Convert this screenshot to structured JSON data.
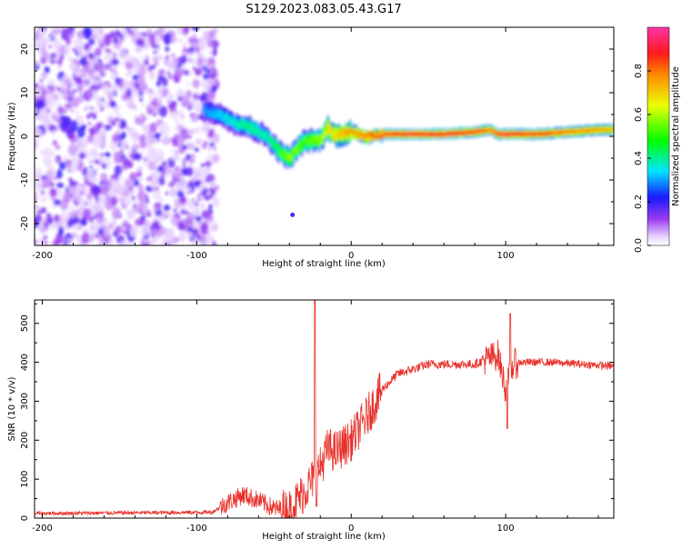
{
  "title": "S129.2023.083.05.43.G17",
  "chart_data": [
    {
      "type": "heatmap",
      "xlabel": "Height of straight line (km)",
      "ylabel": "Frequency (Hz)",
      "xlim": [
        -205,
        170
      ],
      "ylim": [
        -25,
        25
      ],
      "x_ticks": [
        -200,
        -100,
        0,
        100
      ],
      "y_ticks": [
        -20,
        -10,
        0,
        10,
        20
      ],
      "colorbar": {
        "label": "Normalized spectral amplitude",
        "ticks": [
          0.0,
          0.2,
          0.4,
          0.6,
          0.8
        ],
        "range": [
          0,
          1
        ]
      },
      "noise_region_x": [
        -205,
        -90
      ],
      "signal_track": {
        "x": [
          -95,
          -85,
          -75,
          -65,
          -55,
          -45,
          -40,
          -30,
          -20,
          -15,
          -10,
          0,
          10,
          20,
          40,
          60,
          80,
          90,
          95,
          100,
          120,
          140,
          160,
          170
        ],
        "y": [
          6,
          5,
          3,
          2,
          0,
          -4,
          -5,
          -1,
          -1,
          2,
          0,
          1,
          0,
          0.5,
          0.5,
          0.5,
          1,
          1.5,
          0.5,
          0.5,
          0.5,
          1,
          1.5,
          1.5
        ],
        "amplitude": [
          0.3,
          0.35,
          0.4,
          0.45,
          0.4,
          0.55,
          0.6,
          0.55,
          0.6,
          0.7,
          0.75,
          0.8,
          0.85,
          0.9,
          0.95,
          0.95,
          0.9,
          0.85,
          0.9,
          0.95,
          0.9,
          0.85,
          0.8,
          0.8
        ]
      },
      "isolated_point": {
        "x": -38,
        "y": -18
      }
    },
    {
      "type": "line",
      "xlabel": "Height of straight line (km)",
      "ylabel": "SNR (10 * v/v)",
      "xlim": [
        -205,
        170
      ],
      "ylim": [
        0,
        560
      ],
      "x_ticks": [
        -200,
        -100,
        0,
        100
      ],
      "y_ticks": [
        0,
        100,
        200,
        300,
        400,
        500
      ],
      "color": "#e8312b",
      "baseline_keypoints": {
        "x": [
          -205,
          -90,
          -80,
          -70,
          -60,
          -50,
          -40,
          -30,
          -20,
          -15,
          -10,
          0,
          10,
          20,
          30,
          50,
          80,
          95,
          100,
          105,
          110,
          130,
          170
        ],
        "y": [
          12,
          15,
          40,
          60,
          45,
          25,
          20,
          70,
          130,
          180,
          170,
          200,
          260,
          330,
          370,
          395,
          395,
          420,
          330,
          395,
          400,
          400,
          390
        ]
      },
      "spikes": [
        {
          "x": -23.5,
          "y": 560
        },
        {
          "x": -22.5,
          "y": 30
        },
        {
          "x": 101,
          "y": 230
        },
        {
          "x": 103,
          "y": 525
        }
      ]
    }
  ]
}
